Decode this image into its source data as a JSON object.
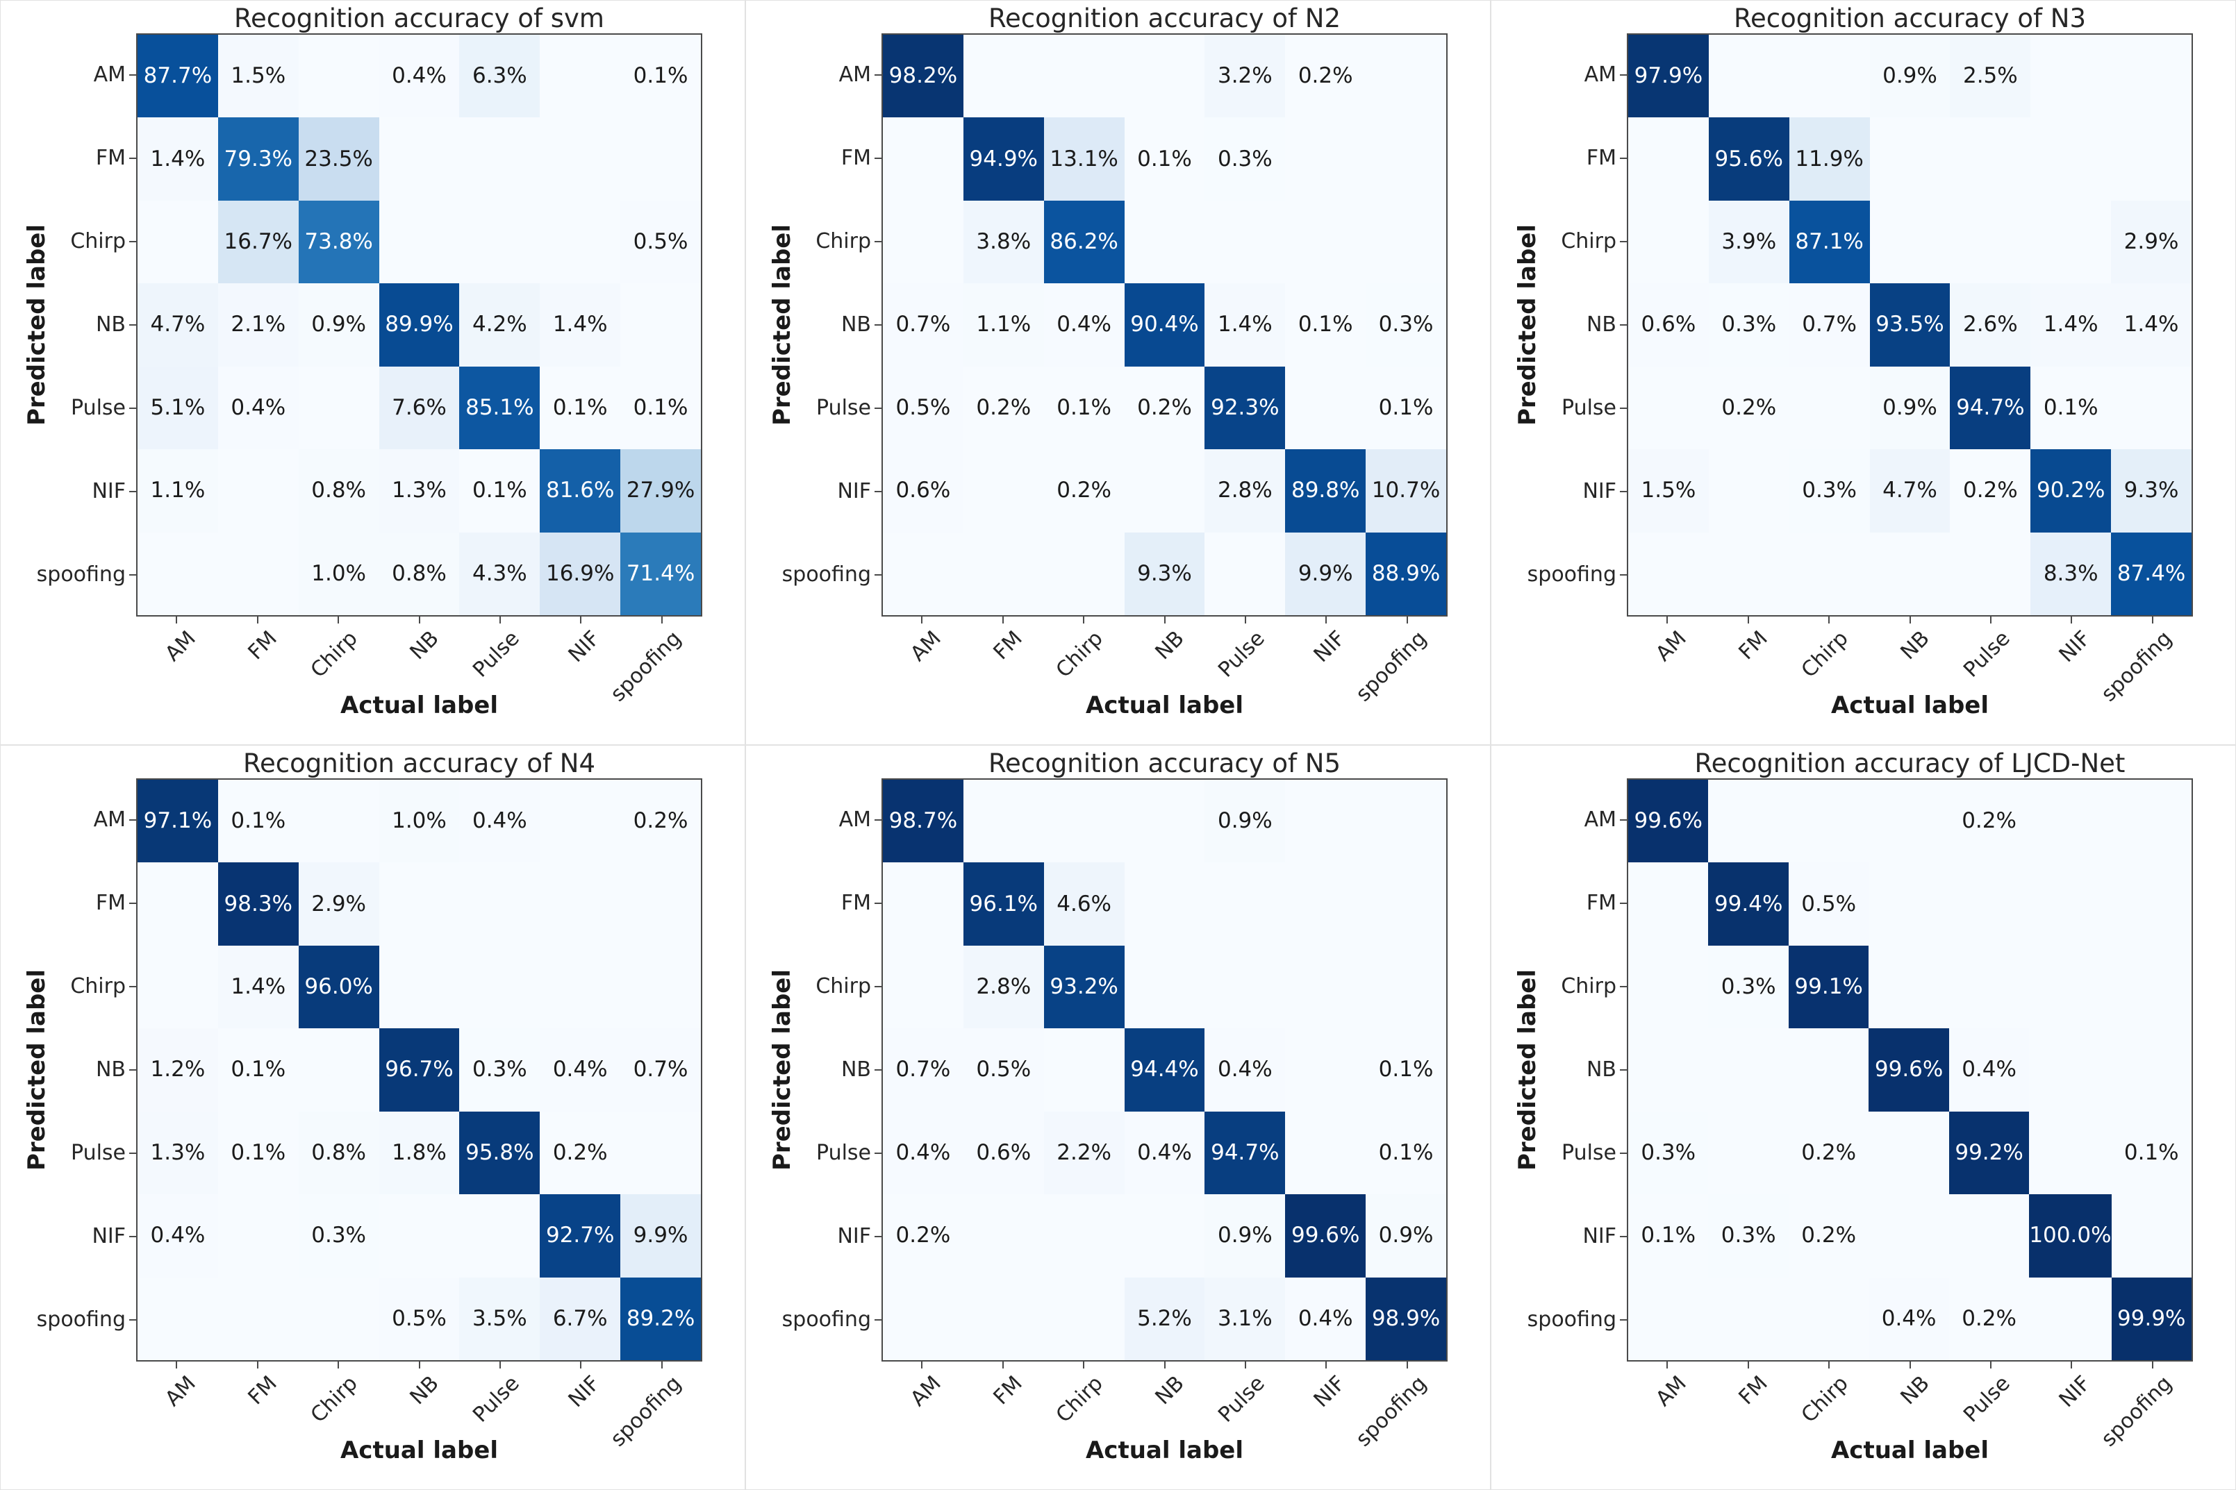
{
  "colors": {
    "cell_text_light": "#ffffff",
    "cell_text_dark": "#1a1a1a",
    "spine": "#4a4a4a",
    "title_text": "#262626",
    "panel_border": "#e2e2e2"
  },
  "colormap": {
    "name": "Blues",
    "min_value": 0,
    "max_value": 100,
    "white_text_threshold": 50,
    "stops": [
      "#f7fbff",
      "#deebf7",
      "#c6dbef",
      "#9ecae1",
      "#6baed6",
      "#4292c6",
      "#2171b5",
      "#08519c",
      "#08306b"
    ]
  },
  "chart_data": [
    {
      "type": "heatmap",
      "title": "Recognition accuracy of svm",
      "xlabel": "Actual label",
      "ylabel": "Predicted label",
      "x_categories": [
        "AM",
        "FM",
        "Chirp",
        "NB",
        "Pulse",
        "NIF",
        "spoofing"
      ],
      "y_categories": [
        "AM",
        "FM",
        "Chirp",
        "NB",
        "Pulse",
        "NIF",
        "spoofing"
      ],
      "values_unit": "%",
      "rows": [
        [
          "87.7%",
          "1.5%",
          "",
          "0.4%",
          "6.3%",
          "",
          "0.1%"
        ],
        [
          "1.4%",
          "79.3%",
          "23.5%",
          "",
          "",
          "",
          ""
        ],
        [
          "",
          "16.7%",
          "73.8%",
          "",
          "",
          "",
          "0.5%"
        ],
        [
          "4.7%",
          "2.1%",
          "0.9%",
          "89.9%",
          "4.2%",
          "1.4%",
          ""
        ],
        [
          "5.1%",
          "0.4%",
          "",
          "7.6%",
          "85.1%",
          "0.1%",
          "0.1%"
        ],
        [
          "1.1%",
          "",
          "0.8%",
          "1.3%",
          "0.1%",
          "81.6%",
          "27.9%"
        ],
        [
          "",
          "",
          "1.0%",
          "0.8%",
          "4.3%",
          "16.9%",
          "71.4%"
        ]
      ]
    },
    {
      "type": "heatmap",
      "title": "Recognition accuracy of N2",
      "xlabel": "Actual label",
      "ylabel": "Predicted label",
      "x_categories": [
        "AM",
        "FM",
        "Chirp",
        "NB",
        "Pulse",
        "NIF",
        "spoofing"
      ],
      "y_categories": [
        "AM",
        "FM",
        "Chirp",
        "NB",
        "Pulse",
        "NIF",
        "spoofing"
      ],
      "values_unit": "%",
      "rows": [
        [
          "98.2%",
          "",
          "",
          "",
          "3.2%",
          "0.2%",
          ""
        ],
        [
          "",
          "94.9%",
          "13.1%",
          "0.1%",
          "0.3%",
          "",
          ""
        ],
        [
          "",
          "3.8%",
          "86.2%",
          "",
          "",
          "",
          ""
        ],
        [
          "0.7%",
          "1.1%",
          "0.4%",
          "90.4%",
          "1.4%",
          "0.1%",
          "0.3%"
        ],
        [
          "0.5%",
          "0.2%",
          "0.1%",
          "0.2%",
          "92.3%",
          "",
          "0.1%"
        ],
        [
          "0.6%",
          "",
          "0.2%",
          "",
          "2.8%",
          "89.8%",
          "10.7%"
        ],
        [
          "",
          "",
          "",
          "9.3%",
          "",
          "9.9%",
          "88.9%"
        ]
      ]
    },
    {
      "type": "heatmap",
      "title": "Recognition accuracy of N3",
      "xlabel": "Actual label",
      "ylabel": "Predicted label",
      "x_categories": [
        "AM",
        "FM",
        "Chirp",
        "NB",
        "Pulse",
        "NIF",
        "spoofing"
      ],
      "y_categories": [
        "AM",
        "FM",
        "Chirp",
        "NB",
        "Pulse",
        "NIF",
        "spoofing"
      ],
      "values_unit": "%",
      "rows": [
        [
          "97.9%",
          "",
          "",
          "0.9%",
          "2.5%",
          "",
          ""
        ],
        [
          "",
          "95.6%",
          "11.9%",
          "",
          "",
          "",
          ""
        ],
        [
          "",
          "3.9%",
          "87.1%",
          "",
          "",
          "",
          "2.9%"
        ],
        [
          "0.6%",
          "0.3%",
          "0.7%",
          "93.5%",
          "2.6%",
          "1.4%",
          "1.4%"
        ],
        [
          "",
          "0.2%",
          "",
          "0.9%",
          "94.7%",
          "0.1%",
          ""
        ],
        [
          "1.5%",
          "",
          "0.3%",
          "4.7%",
          "0.2%",
          "90.2%",
          "9.3%"
        ],
        [
          "",
          "",
          "",
          "",
          "",
          "8.3%",
          "87.4%"
        ]
      ]
    },
    {
      "type": "heatmap",
      "title": "Recognition accuracy of N4",
      "xlabel": "Actual label",
      "ylabel": "Predicted label",
      "x_categories": [
        "AM",
        "FM",
        "Chirp",
        "NB",
        "Pulse",
        "NIF",
        "spoofing"
      ],
      "y_categories": [
        "AM",
        "FM",
        "Chirp",
        "NB",
        "Pulse",
        "NIF",
        "spoofing"
      ],
      "values_unit": "%",
      "rows": [
        [
          "97.1%",
          "0.1%",
          "",
          "1.0%",
          "0.4%",
          "",
          "0.2%"
        ],
        [
          "",
          "98.3%",
          "2.9%",
          "",
          "",
          "",
          ""
        ],
        [
          "",
          "1.4%",
          "96.0%",
          "",
          "",
          "",
          ""
        ],
        [
          "1.2%",
          "0.1%",
          "",
          "96.7%",
          "0.3%",
          "0.4%",
          "0.7%"
        ],
        [
          "1.3%",
          "0.1%",
          "0.8%",
          "1.8%",
          "95.8%",
          "0.2%",
          ""
        ],
        [
          "0.4%",
          "",
          "0.3%",
          "",
          "",
          "92.7%",
          "9.9%"
        ],
        [
          "",
          "",
          "",
          "0.5%",
          "3.5%",
          "6.7%",
          "89.2%"
        ]
      ]
    },
    {
      "type": "heatmap",
      "title": "Recognition accuracy of N5",
      "xlabel": "Actual label",
      "ylabel": "Predicted label",
      "x_categories": [
        "AM",
        "FM",
        "Chirp",
        "NB",
        "Pulse",
        "NIF",
        "spoofing"
      ],
      "y_categories": [
        "AM",
        "FM",
        "Chirp",
        "NB",
        "Pulse",
        "NIF",
        "spoofing"
      ],
      "values_unit": "%",
      "rows": [
        [
          "98.7%",
          "",
          "",
          "",
          "0.9%",
          "",
          ""
        ],
        [
          "",
          "96.1%",
          "4.6%",
          "",
          "",
          "",
          ""
        ],
        [
          "",
          "2.8%",
          "93.2%",
          "",
          "",
          "",
          ""
        ],
        [
          "0.7%",
          "0.5%",
          "",
          "94.4%",
          "0.4%",
          "",
          "0.1%"
        ],
        [
          "0.4%",
          "0.6%",
          "2.2%",
          "0.4%",
          "94.7%",
          "",
          "0.1%"
        ],
        [
          "0.2%",
          "",
          "",
          "",
          "0.9%",
          "99.6%",
          "0.9%"
        ],
        [
          "",
          "",
          "",
          "5.2%",
          "3.1%",
          "0.4%",
          "98.9%"
        ]
      ]
    },
    {
      "type": "heatmap",
      "title": "Recognition accuracy of LJCD-Net",
      "xlabel": "Actual label",
      "ylabel": "Predicted label",
      "x_categories": [
        "AM",
        "FM",
        "Chirp",
        "NB",
        "Pulse",
        "NIF",
        "spoofing"
      ],
      "y_categories": [
        "AM",
        "FM",
        "Chirp",
        "NB",
        "Pulse",
        "NIF",
        "spoofing"
      ],
      "values_unit": "%",
      "rows": [
        [
          "99.6%",
          "",
          "",
          "",
          "0.2%",
          "",
          ""
        ],
        [
          "",
          "99.4%",
          "0.5%",
          "",
          "",
          "",
          ""
        ],
        [
          "",
          "0.3%",
          "99.1%",
          "",
          "",
          "",
          ""
        ],
        [
          "",
          "",
          "",
          "99.6%",
          "0.4%",
          "",
          ""
        ],
        [
          "0.3%",
          "",
          "0.2%",
          "",
          "99.2%",
          "",
          "0.1%"
        ],
        [
          "0.1%",
          "0.3%",
          "0.2%",
          "",
          "",
          "100.0%",
          ""
        ],
        [
          "",
          "",
          "",
          "0.4%",
          "0.2%",
          "",
          "99.9%"
        ]
      ]
    }
  ]
}
